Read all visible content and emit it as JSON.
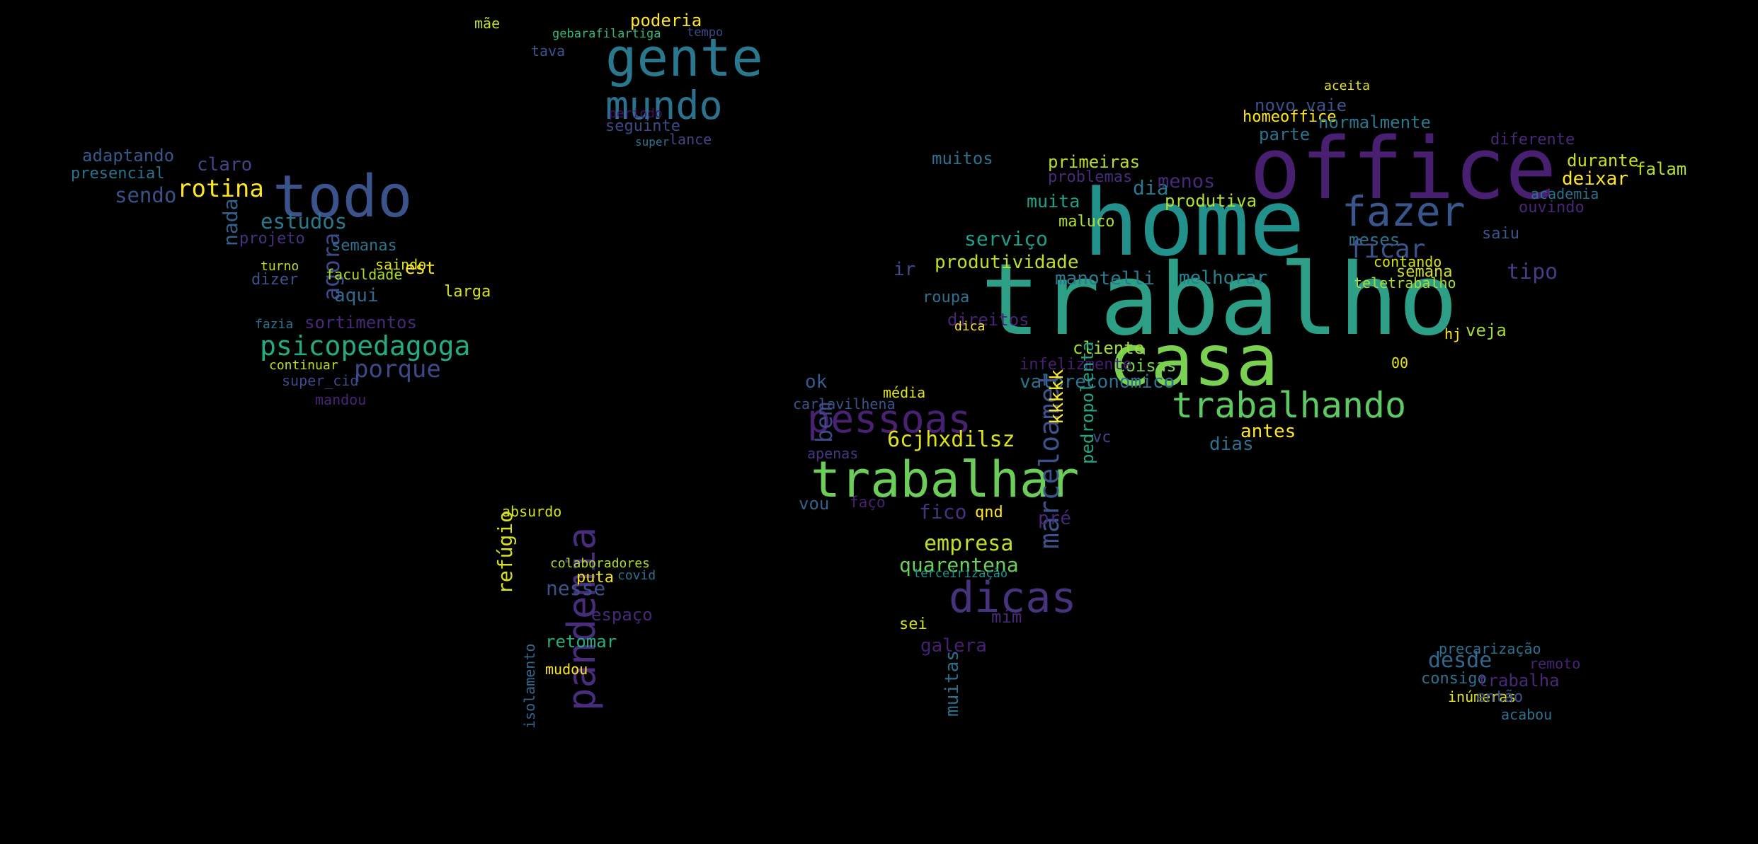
{
  "words": [
    {
      "t": "office",
      "c": "#481f71"
    },
    {
      "t": "home",
      "c": "#22908b"
    },
    {
      "t": "trabalho",
      "c": "#2e9f87"
    },
    {
      "t": "casa",
      "c": "#7ad151"
    },
    {
      "t": "trabalhando",
      "c": "#5ec962"
    },
    {
      "t": "fazer",
      "c": "#39568c"
    },
    {
      "t": "trabalhar",
      "c": "#6ccd5a"
    },
    {
      "t": "pessoas",
      "c": "#482173"
    },
    {
      "t": "dicas",
      "c": "#46337e"
    },
    {
      "t": "gente",
      "c": "#2a788e"
    },
    {
      "t": "mundo",
      "c": "#2c728e"
    },
    {
      "t": "todo",
      "c": "#3b528b"
    },
    {
      "t": "pandemia",
      "c": "#472d7b"
    },
    {
      "t": "psicopedagoga",
      "c": "#25ab82"
    },
    {
      "t": "rotina",
      "c": "#fde725"
    },
    {
      "t": "estudos",
      "c": "#2a788e"
    },
    {
      "t": "porque",
      "c": "#3e4989"
    },
    {
      "t": "sortimentos",
      "c": "#482979"
    },
    {
      "t": "adaptando",
      "c": "#38588c"
    },
    {
      "t": "presencial",
      "c": "#2c728e"
    },
    {
      "t": "sendo",
      "c": "#3b528b"
    },
    {
      "t": "claro",
      "c": "#414487"
    },
    {
      "t": "agora",
      "c": "#3e4989"
    },
    {
      "t": "semanas",
      "c": "#2d718e"
    },
    {
      "t": "aqui",
      "c": "#31688e"
    },
    {
      "t": "saindo",
      "c": "#dde318"
    },
    {
      "t": "faculdade",
      "c": "#addc30"
    },
    {
      "t": "projeto",
      "c": "#46327e"
    },
    {
      "t": "nada",
      "c": "#34618d"
    },
    {
      "t": "dizer",
      "c": "#3b528b"
    },
    {
      "t": "fazia",
      "c": "#2c728e"
    },
    {
      "t": "continuar",
      "c": "#bddf26"
    },
    {
      "t": "super_cid",
      "c": "#3e4a89"
    },
    {
      "t": "mandou",
      "c": "#482475"
    },
    {
      "t": "larga",
      "c": "#d8e219"
    },
    {
      "t": "turno",
      "c": "#b5de2b"
    },
    {
      "t": "est",
      "c": "#fde725"
    },
    {
      "t": "poderia",
      "c": "#fde725"
    },
    {
      "t": "seguinte",
      "c": "#3e4989"
    },
    {
      "t": "lance",
      "c": "#414487"
    },
    {
      "t": "tava",
      "c": "#3b528b"
    },
    {
      "t": "gebarafilartiga",
      "c": "#32b67a"
    },
    {
      "t": "periodo",
      "c": "#471063"
    },
    {
      "t": "tempo",
      "c": "#3e4989"
    },
    {
      "t": "mãe",
      "c": "#c2df23"
    },
    {
      "t": "super",
      "c": "#2c728e"
    },
    {
      "t": "muitos",
      "c": "#2d708e"
    },
    {
      "t": "serviço",
      "c": "#1f9e89"
    },
    {
      "t": "produtividade",
      "c": "#bddf26"
    },
    {
      "t": "manotelli",
      "c": "#2a788e"
    },
    {
      "t": "primeiras",
      "c": "#b5de2b"
    },
    {
      "t": "problemas",
      "c": "#472c7a"
    },
    {
      "t": "maluco",
      "c": "#b0dd2f"
    },
    {
      "t": "muita",
      "c": "#1fa188"
    },
    {
      "t": "dia",
      "c": "#2a788e"
    },
    {
      "t": "menos",
      "c": "#482979"
    },
    {
      "t": "produtiva",
      "c": "#b5de2b"
    },
    {
      "t": "melhorar",
      "c": "#25848e"
    },
    {
      "t": "valoreconomico",
      "c": "#2c728e"
    },
    {
      "t": "coisas",
      "c": "#7ad151"
    },
    {
      "t": "cliente",
      "c": "#a2da37"
    },
    {
      "t": "infelizmente",
      "c": "#481f71"
    },
    {
      "t": "roupa",
      "c": "#2d718e"
    },
    {
      "t": "direitos",
      "c": "#482475"
    },
    {
      "t": "ir",
      "c": "#3e4989"
    },
    {
      "t": "dica",
      "c": "#fde725"
    },
    {
      "t": "média",
      "c": "#e2e418"
    },
    {
      "t": "6cjhxdilsz",
      "c": "#dde318"
    },
    {
      "t": "bem",
      "c": "#3e4989"
    },
    {
      "t": "ok",
      "c": "#365c8d"
    },
    {
      "t": "carlavilhena",
      "c": "#3b528b"
    },
    {
      "t": "apenas",
      "c": "#453882"
    },
    {
      "t": "vou",
      "c": "#34618d"
    },
    {
      "t": "faço",
      "c": "#482173"
    },
    {
      "t": "fico",
      "c": "#46327e"
    },
    {
      "t": "qnd",
      "c": "#fde725"
    },
    {
      "t": "empresa",
      "c": "#c2df23"
    },
    {
      "t": "quarentena",
      "c": "#6ccd5a"
    },
    {
      "t": "terceirização",
      "c": "#20928c"
    },
    {
      "t": "mim",
      "c": "#482979"
    },
    {
      "t": "sei",
      "c": "#d2e21b"
    },
    {
      "t": "galera",
      "c": "#481f71"
    },
    {
      "t": "muitas",
      "c": "#2e6e8e"
    },
    {
      "t": "marceloamet",
      "c": "#3b528b"
    },
    {
      "t": "pré",
      "c": "#482777"
    },
    {
      "t": "pedropolenta",
      "c": "#22a785"
    },
    {
      "t": "kkkkk",
      "c": "#fde725"
    },
    {
      "t": "vc",
      "c": "#3e4989"
    },
    {
      "t": "dias",
      "c": "#2d708e"
    },
    {
      "t": "antes",
      "c": "#fde725"
    },
    {
      "t": "parte",
      "c": "#2c728e"
    },
    {
      "t": "homeoffice",
      "c": "#fde725"
    },
    {
      "t": "novo vaie",
      "c": "#3b528b"
    },
    {
      "t": "normalmente",
      "c": "#2a788e"
    },
    {
      "t": "aceita",
      "c": "#e5e419"
    },
    {
      "t": "deixar",
      "c": "#fde725"
    },
    {
      "t": "durante",
      "c": "#c8e020"
    },
    {
      "t": "falam",
      "c": "#b5de2b"
    },
    {
      "t": "diferente",
      "c": "#482979"
    },
    {
      "t": "ouvindo",
      "c": "#482777"
    },
    {
      "t": "academia",
      "c": "#2c728e"
    },
    {
      "t": "meses",
      "c": "#2c728e"
    },
    {
      "t": "ficar",
      "c": "#3b528b"
    },
    {
      "t": "saiu",
      "c": "#39558c"
    },
    {
      "t": "tipo",
      "c": "#433e85"
    },
    {
      "t": "semana",
      "c": "#cde11d"
    },
    {
      "t": "contando",
      "c": "#d5e21a"
    },
    {
      "t": "teletrabalho",
      "c": "#a8db34"
    },
    {
      "t": "veja",
      "c": "#a2da37"
    },
    {
      "t": "hj",
      "c": "#fde725"
    },
    {
      "t": "00",
      "c": "#e7e419"
    },
    {
      "t": "absurdo",
      "c": "#d2e21b"
    },
    {
      "t": "refúgio",
      "c": "#d8e219"
    },
    {
      "t": "colaboradores",
      "c": "#addc30"
    },
    {
      "t": "puta",
      "c": "#f1e51d"
    },
    {
      "t": "covid",
      "c": "#2c728e"
    },
    {
      "t": "nesse",
      "c": "#3b528b"
    },
    {
      "t": "espaço",
      "c": "#482979"
    },
    {
      "t": "retomar",
      "c": "#26ad81"
    },
    {
      "t": "mudou",
      "c": "#fde725"
    },
    {
      "t": "isolamento",
      "c": "#31688e"
    },
    {
      "t": "desde",
      "c": "#31688e"
    },
    {
      "t": "consigo",
      "c": "#2c728e"
    },
    {
      "t": "precarização",
      "c": "#2d718e"
    },
    {
      "t": "trabalha",
      "c": "#482979"
    },
    {
      "t": "inúmeras",
      "c": "#e5e419"
    },
    {
      "t": "então",
      "c": "#3b528b"
    },
    {
      "t": "acabou",
      "c": "#2c728e"
    },
    {
      "t": "remoto",
      "c": "#482475"
    }
  ]
}
